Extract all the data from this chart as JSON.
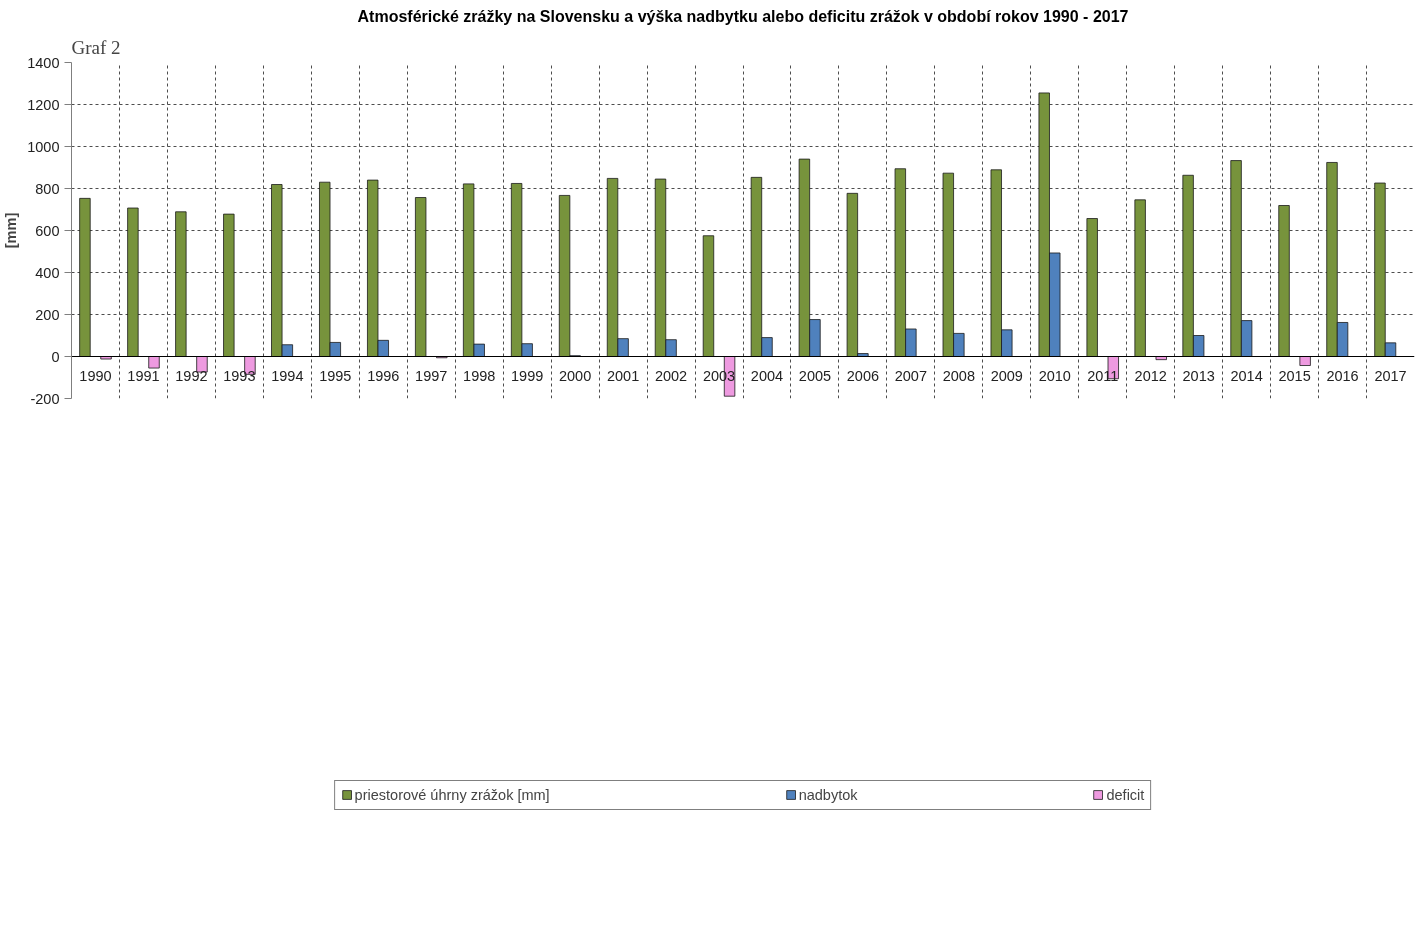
{
  "chart_data": {
    "type": "bar",
    "title": "Atmosférické zrážky na Slovensku a výška nadbytku alebo deficitu zrážok v období rokov 1990 - 2017",
    "ylabel": "[mm]",
    "annotations": [
      "Graf 2"
    ],
    "categories": [
      "1990",
      "1991",
      "1992",
      "1993",
      "1994",
      "1995",
      "1996",
      "1997",
      "1998",
      "1999",
      "2000",
      "2001",
      "2002",
      "2003",
      "2004",
      "2005",
      "2006",
      "2007",
      "2008",
      "2009",
      "2010",
      "2011",
      "2012",
      "2013",
      "2014",
      "2015",
      "2016",
      "2017"
    ],
    "series": [
      {
        "name": "priestorové úhrny zrážok [mm]",
        "color": "#77933c",
        "values": [
          753,
          707,
          689,
          678,
          819,
          830,
          840,
          757,
          822,
          824,
          767,
          848,
          845,
          575,
          853,
          940,
          777,
          894,
          873,
          889,
          1255,
          657,
          746,
          863,
          933,
          719,
          924,
          826
        ]
      },
      {
        "name": "nadbytok",
        "color": "#4f81bd",
        "values": [
          null,
          null,
          null,
          null,
          56,
          67,
          77,
          null,
          59,
          61,
          4,
          85,
          80,
          null,
          90,
          176,
          14,
          131,
          110,
          127,
          493,
          null,
          null,
          100,
          171,
          null,
          162,
          65
        ]
      },
      {
        "name": "deficit",
        "color": "#ee9ae0",
        "values": [
          -12,
          -55,
          -74,
          -85,
          null,
          null,
          null,
          -6,
          null,
          null,
          null,
          null,
          null,
          -189,
          null,
          null,
          null,
          null,
          null,
          null,
          null,
          -106,
          -15,
          null,
          null,
          -43,
          null,
          null
        ]
      }
    ],
    "ylim": [
      -200,
      1400
    ],
    "yticks": [
      -200,
      0,
      200,
      400,
      600,
      800,
      1000,
      1200,
      1400
    ],
    "grid": true,
    "legend": "bottom"
  }
}
